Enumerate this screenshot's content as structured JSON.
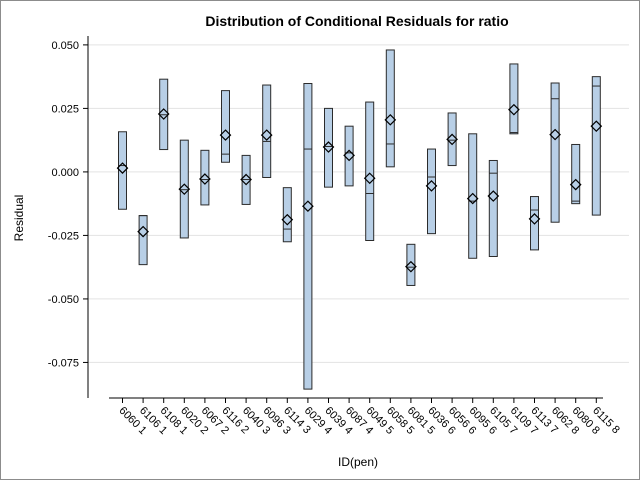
{
  "chart_data": {
    "type": "box",
    "title": "Distribution of Conditional Residuals for ratio",
    "xlabel": "ID(pen)",
    "ylabel": "Residual",
    "ylim": [
      -0.089,
      0.0535
    ],
    "yticks": [
      0.05,
      0.025,
      0.0,
      -0.025,
      -0.05,
      -0.075
    ],
    "ytick_labels": [
      "0.050",
      "0.025",
      "0.000",
      "-0.025",
      "-0.050",
      "-0.075"
    ],
    "grid": true,
    "colors": {
      "box_fill": "#b8cfe6",
      "box_stroke": "#2b2b2b",
      "grid": "#e3e3e3",
      "axis": "#000000"
    },
    "categories": [
      "6060 1",
      "6106 1",
      "6108 1",
      "6020 2",
      "6067 2",
      "6116 2",
      "6040 3",
      "6096 3",
      "6114 3",
      "6029 4",
      "6039 4",
      "6087 4",
      "6049 5",
      "6058 5",
      "6081 5",
      "6036 6",
      "6056 6",
      "6095 6",
      "6105 7",
      "6109 7",
      "6113 7",
      "6062 8",
      "6080 8",
      "6115 8"
    ],
    "boxes": [
      {
        "min": -0.0147,
        "q1": -0.0147,
        "median": 0.0025,
        "q3": 0.0158,
        "max": 0.0158,
        "mean": 0.0015
      },
      {
        "min": -0.0365,
        "q1": -0.0365,
        "median": -0.0172,
        "q3": -0.0172,
        "max": -0.0172,
        "mean": -0.0235
      },
      {
        "min": 0.0088,
        "q1": 0.0088,
        "median": 0.0225,
        "q3": 0.0365,
        "max": 0.0365,
        "mean": 0.0228
      },
      {
        "min": -0.026,
        "q1": -0.026,
        "median": -0.007,
        "q3": 0.0125,
        "max": 0.0125,
        "mean": -0.0068
      },
      {
        "min": -0.013,
        "q1": -0.013,
        "median": -0.003,
        "q3": 0.0085,
        "max": 0.0085,
        "mean": -0.0028
      },
      {
        "min": 0.0038,
        "q1": 0.0038,
        "median": 0.007,
        "q3": 0.032,
        "max": 0.032,
        "mean": 0.0145
      },
      {
        "min": -0.0128,
        "q1": -0.0128,
        "median": -0.003,
        "q3": 0.0065,
        "max": 0.0065,
        "mean": -0.003
      },
      {
        "min": -0.0022,
        "q1": -0.0022,
        "median": 0.012,
        "q3": 0.0342,
        "max": 0.0342,
        "mean": 0.0145
      },
      {
        "min": -0.0275,
        "q1": -0.0275,
        "median": -0.0225,
        "q3": -0.0062,
        "max": -0.0062,
        "mean": -0.0188
      },
      {
        "min": -0.0855,
        "q1": -0.0855,
        "median": 0.009,
        "q3": 0.0348,
        "max": 0.0348,
        "mean": -0.0135
      },
      {
        "min": -0.006,
        "q1": -0.006,
        "median": 0.01,
        "q3": 0.025,
        "max": 0.025,
        "mean": 0.0098
      },
      {
        "min": -0.0055,
        "q1": -0.0055,
        "median": 0.0075,
        "q3": 0.018,
        "max": 0.018,
        "mean": 0.0065
      },
      {
        "min": -0.027,
        "q1": -0.027,
        "median": -0.0085,
        "q3": 0.0275,
        "max": 0.0275,
        "mean": -0.0025
      },
      {
        "min": 0.002,
        "q1": 0.002,
        "median": 0.011,
        "q3": 0.048,
        "max": 0.048,
        "mean": 0.0205
      },
      {
        "min": -0.0447,
        "q1": -0.0447,
        "median": -0.0375,
        "q3": -0.0285,
        "max": -0.0285,
        "mean": -0.0373
      },
      {
        "min": -0.0243,
        "q1": -0.0243,
        "median": -0.002,
        "q3": 0.009,
        "max": 0.009,
        "mean": -0.0055
      },
      {
        "min": 0.0025,
        "q1": 0.0025,
        "median": 0.0125,
        "q3": 0.0232,
        "max": 0.0232,
        "mean": 0.0128
      },
      {
        "min": -0.034,
        "q1": -0.034,
        "median": -0.0115,
        "q3": 0.015,
        "max": 0.015,
        "mean": -0.0105
      },
      {
        "min": -0.0333,
        "q1": -0.0333,
        "median": -0.0005,
        "q3": 0.0045,
        "max": 0.0045,
        "mean": -0.0095
      },
      {
        "min": 0.015,
        "q1": 0.015,
        "median": 0.0155,
        "q3": 0.0425,
        "max": 0.0425,
        "mean": 0.0245
      },
      {
        "min": -0.0307,
        "q1": -0.0307,
        "median": -0.015,
        "q3": -0.0097,
        "max": -0.0097,
        "mean": -0.0185
      },
      {
        "min": -0.0198,
        "q1": -0.0198,
        "median": 0.0288,
        "q3": 0.035,
        "max": 0.035,
        "mean": 0.0147
      },
      {
        "min": -0.0125,
        "q1": -0.0125,
        "median": -0.0115,
        "q3": 0.0108,
        "max": 0.0108,
        "mean": -0.005
      },
      {
        "min": -0.017,
        "q1": -0.017,
        "median": 0.0338,
        "q3": 0.0375,
        "max": 0.0375,
        "mean": 0.018
      }
    ]
  }
}
